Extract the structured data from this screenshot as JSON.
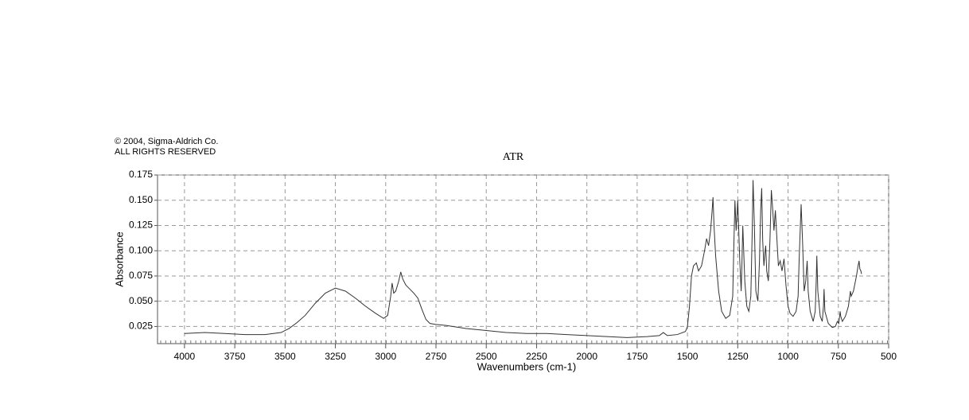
{
  "chart_data": {
    "type": "line",
    "copyright": "© 2004, Sigma-Aldrich Co.",
    "rights": "ALL RIGHTS RESERVED",
    "title": "ATR",
    "x_label": "Wavenumbers (cm-1)",
    "y_label": "Absorbance",
    "xlim": [
      4134,
      500
    ],
    "ylim": [
      0.008,
      0.175
    ],
    "xticks": [
      4000,
      3750,
      3500,
      3250,
      3000,
      2750,
      2500,
      2250,
      2000,
      1750,
      1500,
      1250,
      1000,
      750,
      500
    ],
    "yticks": [
      0.025,
      {
        "value": 0.05,
        "label": "0.050"
      },
      0.075,
      {
        "value": 0.1,
        "label": "0.100"
      },
      0.125,
      {
        "value": 0.15,
        "label": "0.150"
      },
      0.175
    ],
    "grid": true,
    "x": [
      4000,
      3900,
      3800,
      3700,
      3600,
      3520,
      3480,
      3440,
      3400,
      3350,
      3300,
      3250,
      3200,
      3150,
      3100,
      3050,
      3010,
      2990,
      2975,
      2968,
      2960,
      2950,
      2935,
      2925,
      2915,
      2900,
      2880,
      2860,
      2840,
      2820,
      2800,
      2780,
      2750,
      2700,
      2600,
      2500,
      2400,
      2300,
      2200,
      2100,
      2000,
      1900,
      1800,
      1700,
      1640,
      1620,
      1600,
      1550,
      1510,
      1500,
      1490,
      1480,
      1470,
      1456,
      1445,
      1430,
      1415,
      1405,
      1395,
      1385,
      1378,
      1373,
      1368,
      1360,
      1345,
      1330,
      1310,
      1290,
      1275,
      1270,
      1264,
      1258,
      1250,
      1240,
      1233,
      1230,
      1225,
      1215,
      1205,
      1195,
      1185,
      1178,
      1174,
      1168,
      1160,
      1150,
      1142,
      1136,
      1131,
      1126,
      1120,
      1114,
      1111,
      1106,
      1098,
      1090,
      1083,
      1076,
      1070,
      1063,
      1055,
      1048,
      1039,
      1030,
      1020,
      1010,
      1000,
      990,
      975,
      960,
      950,
      945,
      935,
      928,
      920,
      912,
      905,
      900,
      890,
      875,
      865,
      860,
      857,
      852,
      840,
      830,
      824,
      821,
      817,
      800,
      780,
      765,
      755,
      748,
      741,
      738,
      730,
      715,
      700,
      690,
      686,
      675,
      660,
      652,
      647,
      643,
      638,
      635
    ],
    "series": [
      {
        "name": "ATR",
        "color": "#333333",
        "values": [
          0.018,
          0.019,
          0.018,
          0.017,
          0.017,
          0.019,
          0.023,
          0.029,
          0.036,
          0.048,
          0.058,
          0.063,
          0.06,
          0.053,
          0.045,
          0.038,
          0.033,
          0.036,
          0.055,
          0.068,
          0.058,
          0.06,
          0.07,
          0.079,
          0.072,
          0.066,
          0.062,
          0.058,
          0.053,
          0.042,
          0.032,
          0.028,
          0.027,
          0.026,
          0.023,
          0.021,
          0.019,
          0.018,
          0.018,
          0.017,
          0.016,
          0.015,
          0.014,
          0.015,
          0.016,
          0.019,
          0.016,
          0.017,
          0.02,
          0.025,
          0.045,
          0.075,
          0.085,
          0.088,
          0.08,
          0.085,
          0.1,
          0.112,
          0.105,
          0.12,
          0.138,
          0.153,
          0.125,
          0.095,
          0.06,
          0.04,
          0.033,
          0.036,
          0.055,
          0.1,
          0.15,
          0.12,
          0.15,
          0.09,
          0.06,
          0.08,
          0.125,
          0.07,
          0.045,
          0.04,
          0.055,
          0.12,
          0.17,
          0.13,
          0.06,
          0.05,
          0.09,
          0.14,
          0.162,
          0.11,
          0.085,
          0.1,
          0.105,
          0.08,
          0.07,
          0.11,
          0.16,
          0.14,
          0.12,
          0.14,
          0.11,
          0.085,
          0.09,
          0.08,
          0.092,
          0.065,
          0.045,
          0.038,
          0.035,
          0.04,
          0.055,
          0.09,
          0.146,
          0.11,
          0.06,
          0.07,
          0.09,
          0.06,
          0.04,
          0.03,
          0.04,
          0.07,
          0.095,
          0.06,
          0.035,
          0.03,
          0.045,
          0.062,
          0.04,
          0.028,
          0.024,
          0.025,
          0.03,
          0.028,
          0.04,
          0.035,
          0.03,
          0.035,
          0.045,
          0.06,
          0.055,
          0.06,
          0.075,
          0.085,
          0.09,
          0.082,
          0.08,
          0.077
        ]
      }
    ]
  }
}
